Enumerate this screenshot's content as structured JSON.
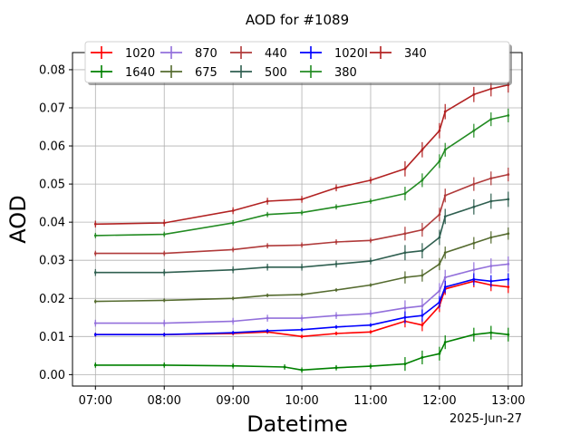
{
  "chart_data": {
    "type": "line",
    "title": "AOD for #1089",
    "xlabel": "Datetime",
    "ylabel": "AOD",
    "date_annotation": "2025-Jun-27",
    "x_ticks": [
      "07:00",
      "08:00",
      "09:00",
      "10:00",
      "11:00",
      "12:00",
      "13:00"
    ],
    "y_ticks": [
      "0.00",
      "0.01",
      "0.02",
      "0.03",
      "0.04",
      "0.05",
      "0.06",
      "0.07",
      "0.08"
    ],
    "xlim": [
      "06:40",
      "13:12"
    ],
    "ylim": [
      -0.003,
      0.0845
    ],
    "grid": true,
    "legend_position": "top",
    "error_bars": true,
    "series": [
      {
        "name": "1020",
        "color": "#ff0000",
        "x": [
          "07:00",
          "08:00",
          "09:00",
          "09:30",
          "10:00",
          "10:30",
          "11:00",
          "11:30",
          "11:45",
          "12:00",
          "12:05",
          "12:30",
          "12:45",
          "13:00"
        ],
        "values": [
          0.0105,
          0.0105,
          0.0108,
          0.0112,
          0.01,
          0.0108,
          0.0112,
          0.014,
          0.013,
          0.018,
          0.0225,
          0.0245,
          0.0235,
          0.023
        ]
      },
      {
        "name": "1640",
        "color": "#008000",
        "x": [
          "07:00",
          "08:00",
          "09:00",
          "09:45",
          "10:00",
          "10:30",
          "11:00",
          "11:30",
          "11:45",
          "12:00",
          "12:05",
          "12:30",
          "12:45",
          "13:00"
        ],
        "values": [
          0.0025,
          0.0025,
          0.0023,
          0.002,
          0.0012,
          0.0018,
          0.0022,
          0.0028,
          0.0045,
          0.0055,
          0.0085,
          0.0105,
          0.011,
          0.0105
        ]
      },
      {
        "name": "870",
        "color": "#9370db",
        "x": [
          "07:00",
          "08:00",
          "09:00",
          "09:30",
          "10:00",
          "10:30",
          "11:00",
          "11:30",
          "11:45",
          "12:00",
          "12:05",
          "12:30",
          "12:45",
          "13:00"
        ],
        "values": [
          0.0135,
          0.0135,
          0.014,
          0.0148,
          0.0148,
          0.0155,
          0.016,
          0.0175,
          0.018,
          0.022,
          0.0255,
          0.0275,
          0.0285,
          0.029
        ]
      },
      {
        "name": "675",
        "color": "#556b2f",
        "x": [
          "07:00",
          "08:00",
          "09:00",
          "09:30",
          "10:00",
          "10:30",
          "11:00",
          "11:30",
          "11:45",
          "12:00",
          "12:05",
          "12:30",
          "12:45",
          "13:00"
        ],
        "values": [
          0.0192,
          0.0195,
          0.02,
          0.0208,
          0.021,
          0.0222,
          0.0235,
          0.0255,
          0.026,
          0.029,
          0.032,
          0.0345,
          0.036,
          0.037
        ]
      },
      {
        "name": "440",
        "color": "#b03a3a",
        "x": [
          "07:00",
          "08:00",
          "09:00",
          "09:30",
          "10:00",
          "10:30",
          "11:00",
          "11:30",
          "11:45",
          "12:00",
          "12:05",
          "12:30",
          "12:45",
          "13:00"
        ],
        "values": [
          0.0318,
          0.0318,
          0.0328,
          0.0338,
          0.034,
          0.0348,
          0.0352,
          0.037,
          0.038,
          0.042,
          0.047,
          0.05,
          0.0515,
          0.0525
        ]
      },
      {
        "name": "500",
        "color": "#2f5f50",
        "x": [
          "07:00",
          "08:00",
          "09:00",
          "09:30",
          "10:00",
          "10:30",
          "11:00",
          "11:30",
          "11:45",
          "12:00",
          "12:05",
          "12:30",
          "12:45",
          "13:00"
        ],
        "values": [
          0.0268,
          0.0268,
          0.0275,
          0.0282,
          0.0282,
          0.029,
          0.0298,
          0.032,
          0.0325,
          0.036,
          0.0415,
          0.044,
          0.0455,
          0.046
        ]
      },
      {
        "name": "1020I",
        "color": "#0000ff",
        "x": [
          "07:00",
          "08:00",
          "09:00",
          "09:30",
          "10:00",
          "10:30",
          "11:00",
          "11:30",
          "11:45",
          "12:00",
          "12:05",
          "12:30",
          "12:45",
          "13:00"
        ],
        "values": [
          0.0105,
          0.0105,
          0.011,
          0.0115,
          0.0118,
          0.0125,
          0.013,
          0.015,
          0.0155,
          0.019,
          0.023,
          0.025,
          0.0245,
          0.025
        ]
      },
      {
        "name": "380",
        "color": "#228b22",
        "x": [
          "07:00",
          "08:00",
          "09:00",
          "09:30",
          "10:00",
          "10:30",
          "11:00",
          "11:30",
          "11:45",
          "12:00",
          "12:05",
          "12:30",
          "12:45",
          "13:00"
        ],
        "values": [
          0.0365,
          0.0368,
          0.0398,
          0.042,
          0.0425,
          0.044,
          0.0455,
          0.0475,
          0.051,
          0.056,
          0.059,
          0.064,
          0.067,
          0.068
        ]
      },
      {
        "name": "340",
        "color": "#b22222",
        "x": [
          "07:00",
          "08:00",
          "09:00",
          "09:30",
          "10:00",
          "10:30",
          "11:00",
          "11:30",
          "11:45",
          "12:00",
          "12:05",
          "12:30",
          "12:45",
          "13:00"
        ],
        "values": [
          0.0395,
          0.0398,
          0.043,
          0.0455,
          0.046,
          0.049,
          0.051,
          0.054,
          0.059,
          0.064,
          0.069,
          0.0735,
          0.075,
          0.076
        ]
      }
    ]
  }
}
